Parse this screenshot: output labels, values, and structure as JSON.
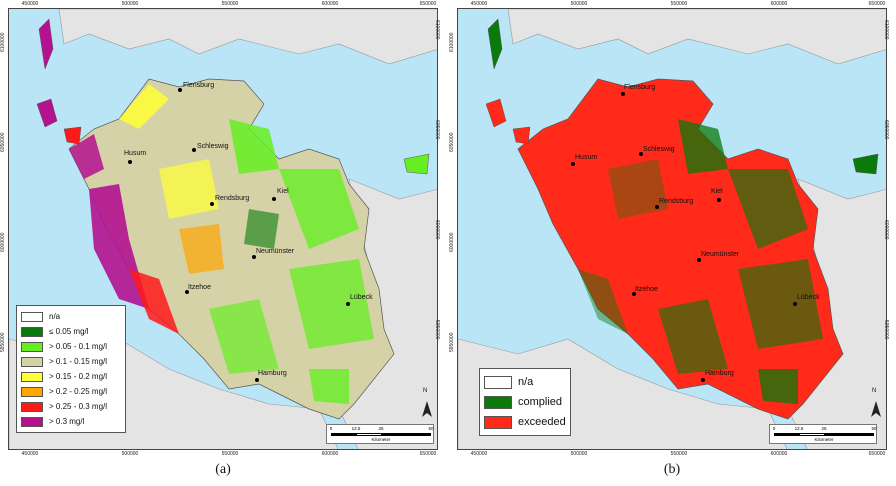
{
  "panels": {
    "a": {
      "label": "(a)",
      "x_ticks": [
        "450000",
        "500000",
        "550000",
        "600000",
        "650000"
      ],
      "y_ticks": [
        "6100000",
        "6050000",
        "6000000",
        "5950000"
      ],
      "legend": [
        {
          "label": "n/a",
          "color": "#ffffff"
        },
        {
          "label": "≤ 0.05 mg/l",
          "color": "#0a7a0a"
        },
        {
          "label": "> 0.05 - 0.1 mg/l",
          "color": "#66ee22"
        },
        {
          "label": "> 0.1 - 0.15 mg/l",
          "color": "#d6d2a8"
        },
        {
          "label": "> 0.15 - 0.2 mg/l",
          "color": "#ffff33"
        },
        {
          "label": "> 0.2 - 0.25 mg/l",
          "color": "#ffa500"
        },
        {
          "label": "> 0.25 - 0.3 mg/l",
          "color": "#ff1a1a"
        },
        {
          "label": "> 0.3 mg/l",
          "color": "#b4128f"
        }
      ],
      "cities": [
        "Flensburg",
        "Schleswig",
        "Husum",
        "Kiel",
        "Rendsburg",
        "Neumünster",
        "Itzehoe",
        "Lübeck",
        "Hamburg"
      ]
    },
    "b": {
      "label": "(b)",
      "x_ticks": [
        "450000",
        "500000",
        "550000",
        "600000",
        "650000"
      ],
      "y_ticks": [
        "6100000",
        "6050000",
        "6000000",
        "5950000"
      ],
      "legend": [
        {
          "label": "n/a",
          "color": "#ffffff"
        },
        {
          "label": "complied",
          "color": "#0a7a0a"
        },
        {
          "label": "exceeded",
          "color": "#ff2a1a"
        }
      ],
      "cities": [
        "Flensburg",
        "Schleswig",
        "Husum",
        "Kiel",
        "Rendsburg",
        "Neumünster",
        "Itzehoe",
        "Lübeck",
        "Hamburg"
      ]
    }
  },
  "scale_bar": {
    "ticks": [
      "0",
      "12.5",
      "25",
      "50"
    ],
    "unit": "Kilometer"
  },
  "north_label": "N",
  "colors": {
    "sea": "#b9e5f7",
    "land": "#e4e4e4",
    "boundary": "#999999"
  }
}
